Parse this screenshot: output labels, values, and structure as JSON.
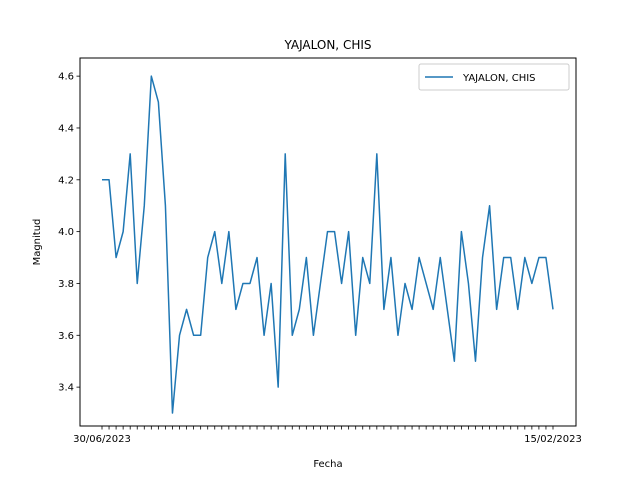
{
  "chart_data": {
    "type": "line",
    "title": "YAJALON, CHIS",
    "xlabel": "Fecha",
    "ylabel": "Magnitud",
    "ylim": [
      3.25,
      4.67
    ],
    "yticks": [
      3.4,
      3.6,
      3.8,
      4.0,
      4.2,
      4.4,
      4.6
    ],
    "ytick_labels": [
      "3.4",
      "3.6",
      "3.8",
      "4.0",
      "4.2",
      "4.4",
      "4.6"
    ],
    "x_first_label": "30/06/2023",
    "x_last_label": "15/02/2023",
    "grid": false,
    "legend_position": "top-right",
    "color": "#1f77b4",
    "series": [
      {
        "name": "YAJALON, CHIS",
        "values": [
          4.2,
          4.2,
          3.9,
          4.0,
          4.3,
          3.8,
          4.1,
          4.6,
          4.5,
          4.1,
          3.3,
          3.6,
          3.7,
          3.6,
          3.6,
          3.9,
          4.0,
          3.8,
          4.0,
          3.7,
          3.8,
          3.8,
          3.9,
          3.6,
          3.8,
          3.4,
          4.3,
          3.6,
          3.7,
          3.9,
          3.6,
          3.8,
          4.0,
          4.0,
          3.8,
          4.0,
          3.6,
          3.9,
          3.8,
          4.3,
          3.7,
          3.9,
          3.6,
          3.8,
          3.7,
          3.9,
          3.8,
          3.7,
          3.9,
          3.7,
          3.5,
          4.0,
          3.8,
          3.5,
          3.9,
          4.1,
          3.7,
          3.9,
          3.9,
          3.7,
          3.9,
          3.8,
          3.9,
          3.9,
          3.7
        ]
      }
    ]
  }
}
